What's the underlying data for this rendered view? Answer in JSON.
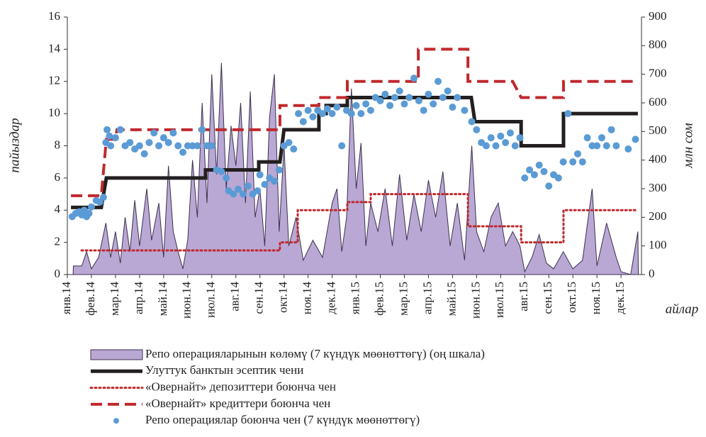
{
  "chart_data": {
    "type": "combo",
    "y_label": "пайыздар",
    "y2_label": "млн сом",
    "x_label": "айлар",
    "xlim": [
      0,
      23.85
    ],
    "xticks": [
      {
        "value": 0,
        "label": "янв.14"
      },
      {
        "value": 1,
        "label": "фев.14"
      },
      {
        "value": 2,
        "label": "мар.14"
      },
      {
        "value": 3,
        "label": "апр.14"
      },
      {
        "value": 4,
        "label": "май.14"
      },
      {
        "value": 5,
        "label": "июн.14"
      },
      {
        "value": 6,
        "label": "июл.14"
      },
      {
        "value": 7,
        "label": "авг.14"
      },
      {
        "value": 8,
        "label": "сен.14"
      },
      {
        "value": 9,
        "label": "окт.14"
      },
      {
        "value": 10,
        "label": "ноя.14"
      },
      {
        "value": 11,
        "label": "дек.14"
      },
      {
        "value": 12,
        "label": "янв.15"
      },
      {
        "value": 13,
        "label": "фев.15"
      },
      {
        "value": 14,
        "label": "мар.15"
      },
      {
        "value": 15,
        "label": "апр.15"
      },
      {
        "value": 16,
        "label": "май.15"
      },
      {
        "value": 17,
        "label": "июн.15"
      },
      {
        "value": 18,
        "label": "июл.15"
      },
      {
        "value": 19,
        "label": "авг.15"
      },
      {
        "value": 20,
        "label": "сен.15"
      },
      {
        "value": 21,
        "label": "окт.15"
      },
      {
        "value": 22,
        "label": "ноя.15"
      },
      {
        "value": 23,
        "label": "дек.15"
      }
    ],
    "ylim": [
      0,
      16
    ],
    "yticks": [
      0,
      2,
      4,
      6,
      8,
      10,
      12,
      14,
      16
    ],
    "y2lim": [
      0,
      900
    ],
    "y2ticks": [
      0,
      100,
      200,
      300,
      400,
      500,
      600,
      700,
      800,
      900
    ],
    "series": [
      {
        "name": "Репо операцияларынын көлөмү (7 күндүк мөөнөттөгү) (оң шкала)",
        "type": "area",
        "axis": "y2",
        "color": "#b9a8d4",
        "stroke": "#3b3050",
        "x": [
          0.24,
          0.25,
          0.6,
          0.8,
          1.0,
          1.3,
          1.6,
          1.8,
          2.0,
          2.2,
          2.4,
          2.6,
          2.8,
          3.0,
          3.3,
          3.5,
          3.8,
          4.0,
          4.2,
          4.4,
          4.6,
          4.8,
          5.0,
          5.2,
          5.4,
          5.6,
          5.8,
          6.0,
          6.2,
          6.4,
          6.6,
          6.8,
          7.0,
          7.2,
          7.4,
          7.6,
          7.8,
          8.0,
          8.2,
          8.4,
          8.6,
          8.8,
          9.0,
          9.2,
          9.5,
          9.8,
          10.2,
          10.6,
          11.0,
          11.2,
          11.4,
          11.6,
          11.8,
          12.0,
          12.2,
          12.4,
          12.6,
          12.9,
          13.2,
          13.5,
          13.8,
          14.1,
          14.4,
          14.7,
          15.0,
          15.3,
          15.6,
          15.9,
          16.2,
          16.5,
          16.8,
          17.0,
          17.3,
          17.6,
          17.9,
          18.2,
          18.5,
          18.8,
          19.0,
          19.3,
          19.6,
          19.9,
          20.2,
          20.6,
          21.0,
          21.4,
          21.8,
          22.0,
          22.4,
          22.8,
          23.0,
          23.4,
          23.7,
          23.72
        ],
        "values": [
          0,
          30,
          30,
          80,
          20,
          60,
          180,
          60,
          150,
          40,
          200,
          80,
          260,
          100,
          300,
          120,
          250,
          60,
          380,
          150,
          80,
          20,
          120,
          400,
          200,
          600,
          250,
          700,
          350,
          740,
          300,
          520,
          380,
          600,
          250,
          640,
          200,
          300,
          100,
          550,
          700,
          150,
          450,
          100,
          200,
          50,
          120,
          60,
          250,
          300,
          80,
          200,
          650,
          300,
          460,
          100,
          250,
          150,
          300,
          100,
          350,
          120,
          280,
          150,
          330,
          200,
          360,
          100,
          250,
          50,
          450,
          150,
          80,
          200,
          250,
          100,
          150,
          100,
          10,
          60,
          140,
          40,
          20,
          80,
          20,
          50,
          300,
          30,
          180,
          60,
          10,
          0,
          150,
          0
        ]
      },
      {
        "name": "Улуттук банктын эсептик чени",
        "type": "line",
        "style": "solid",
        "color": "#231f20",
        "x": [
          0.15,
          1.41,
          1.62,
          5.74,
          5.74,
          7.95,
          7.95,
          8.83,
          9.0,
          10.45,
          10.45,
          10.75,
          10.75,
          11.63,
          11.63,
          16.78,
          16.93,
          18.85,
          18.85,
          20.61,
          20.61,
          23.7
        ],
        "values": [
          4.17,
          4.17,
          6,
          6,
          6.5,
          6.5,
          7,
          7,
          9,
          9,
          10,
          10,
          10.5,
          10.5,
          11,
          11,
          9.5,
          9.5,
          8,
          8,
          10,
          10
        ]
      },
      {
        "name": "«Овернайт» депозиттери боюнча чен",
        "type": "line",
        "style": "dotted",
        "color": "#c0282d",
        "x": [
          0.59,
          8.83,
          8.83,
          9.57,
          9.57,
          11.63,
          11.63,
          12.6,
          12.6,
          16.64,
          16.64,
          18.85,
          18.85,
          20.61,
          20.61,
          23.7
        ],
        "values": [
          1.5,
          1.5,
          2,
          2,
          4,
          4,
          4.5,
          4.5,
          5,
          5,
          3,
          3,
          2,
          2,
          4,
          4
        ]
      },
      {
        "name": "«Овернайт» кредиттери боюнча чен",
        "type": "line",
        "style": "dashed",
        "color": "#c0282d",
        "x": [
          0.15,
          1.41,
          1.62,
          2.0,
          2.06,
          8.83,
          8.83,
          10.45,
          10.45,
          11.63,
          11.63,
          14.58,
          14.58,
          16.64,
          16.64,
          18.5,
          18.85,
          20.61,
          20.61,
          23.7
        ],
        "values": [
          4.9,
          4.9,
          8.4,
          8.4,
          9,
          9,
          10.5,
          10.5,
          11,
          11,
          12,
          12,
          14,
          14,
          12,
          12,
          11,
          11,
          12,
          12
        ]
      },
      {
        "name": "Репо операциялар боюнча чен (7 күндүк мөөнөттөгү)",
        "type": "scatter",
        "color": "#5b9bd5",
        "x": [
          0.2,
          0.35,
          0.5,
          0.6,
          0.7,
          0.8,
          0.9,
          1.0,
          1.2,
          1.35,
          1.5,
          1.6,
          1.65,
          1.75,
          1.8,
          2.0,
          2.2,
          2.4,
          2.6,
          2.8,
          3.0,
          3.2,
          3.4,
          3.6,
          3.8,
          4.0,
          4.2,
          4.4,
          4.6,
          4.8,
          5.0,
          5.2,
          5.4,
          5.6,
          5.8,
          6.0,
          6.2,
          6.4,
          6.6,
          6.7,
          6.9,
          7.1,
          7.3,
          7.5,
          7.7,
          7.9,
          8.0,
          8.2,
          8.4,
          8.6,
          8.8,
          9.0,
          9.2,
          9.4,
          9.6,
          9.8,
          10.0,
          10.2,
          10.4,
          10.6,
          10.8,
          11.0,
          11.2,
          11.4,
          11.6,
          11.8,
          12.0,
          12.2,
          12.4,
          12.6,
          12.8,
          13.0,
          13.2,
          13.4,
          13.6,
          13.8,
          14.0,
          14.2,
          14.4,
          14.6,
          14.8,
          15.0,
          15.2,
          15.4,
          15.6,
          15.8,
          16.0,
          16.2,
          16.5,
          16.8,
          17.0,
          17.2,
          17.4,
          17.6,
          17.8,
          18.0,
          18.2,
          18.4,
          18.6,
          18.8,
          19.0,
          19.2,
          19.4,
          19.6,
          19.8,
          20.0,
          20.2,
          20.4,
          20.6,
          20.8,
          21.0,
          21.2,
          21.4,
          21.6,
          21.8,
          22.0,
          22.2,
          22.4,
          22.6,
          22.8,
          23.3,
          23.6
        ],
        "values": [
          3.6,
          3.8,
          3.9,
          3.7,
          4.0,
          3.6,
          3.8,
          4.2,
          4.6,
          4.5,
          4.8,
          8.2,
          9.0,
          8.6,
          8.0,
          8.5,
          9.0,
          8.0,
          8.2,
          7.8,
          8.0,
          7.5,
          8.2,
          8.8,
          8.0,
          8.5,
          8.2,
          8.8,
          8.0,
          7.6,
          8.0,
          8.0,
          8.0,
          9.0,
          8.0,
          8.0,
          6.5,
          6.4,
          6.0,
          5.2,
          5.0,
          5.3,
          5.0,
          5.5,
          5.0,
          5.2,
          6.2,
          5.6,
          6.0,
          5.8,
          6.5,
          8.0,
          8.2,
          7.8,
          10.0,
          9.5,
          10.2,
          9.8,
          10.2,
          10.0,
          10.3,
          10.0,
          10.4,
          8.0,
          10.2,
          10.0,
          10.5,
          10.0,
          10.6,
          10.2,
          11.0,
          10.8,
          11.2,
          10.5,
          11.0,
          11.4,
          10.6,
          11.0,
          12.2,
          10.8,
          10.2,
          11.2,
          10.6,
          12.0,
          11.0,
          11.4,
          10.4,
          11.0,
          10.2,
          9.5,
          9.0,
          8.2,
          8.0,
          8.5,
          8.0,
          8.6,
          8.2,
          8.8,
          8.0,
          8.5,
          6.0,
          6.5,
          6.2,
          6.8,
          6.4,
          5.5,
          6.2,
          6.0,
          7.0,
          10.0,
          7.0,
          7.5,
          7.0,
          8.5,
          8.0,
          8.0,
          8.5,
          8.0,
          9.0,
          8.0,
          7.8,
          8.4
        ]
      }
    ]
  }
}
